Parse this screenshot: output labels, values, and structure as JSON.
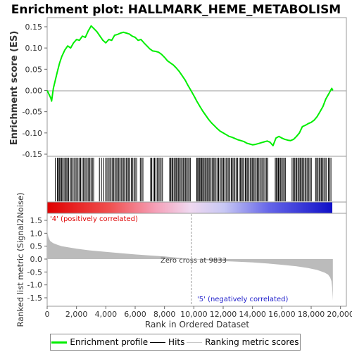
{
  "chart_data": {
    "type": "line",
    "title": "Enrichment plot: HALLMARK_HEME_METABOLISM",
    "enrichment_panel": {
      "ylabel": "Enrichment score (ES)",
      "ylim": [
        -0.15,
        0.165
      ],
      "yticks": [
        0.15,
        0.1,
        0.05,
        0.0,
        -0.05,
        -0.1,
        -0.15
      ],
      "ytick_labels": [
        "0.15",
        "0.10",
        "0.05",
        "0.00",
        "-0.05",
        "-0.10",
        "-0.15"
      ],
      "series": [
        {
          "name": "Enrichment profile",
          "x": [
            0,
            250,
            300,
            420,
            560,
            700,
            850,
            1000,
            1200,
            1400,
            1600,
            1800,
            2000,
            2200,
            2400,
            2600,
            2800,
            3000,
            3200,
            3400,
            3600,
            3800,
            4000,
            4200,
            4400,
            4600,
            4800,
            5000,
            5200,
            5400,
            5600,
            5800,
            6000,
            6200,
            6400,
            6600,
            6800,
            7000,
            7200,
            7400,
            7600,
            7800,
            8000,
            8200,
            8400,
            8600,
            8800,
            9000,
            9200,
            9400,
            9600,
            9800,
            10000,
            10200,
            10400,
            10600,
            10800,
            11000,
            11200,
            11400,
            11600,
            11800,
            12000,
            12200,
            12400,
            12600,
            12800,
            13000,
            13200,
            13400,
            13600,
            13800,
            14000,
            14200,
            14400,
            14600,
            14800,
            15000,
            15200,
            15400,
            15600,
            15800,
            16000,
            16200,
            16400,
            16600,
            16800,
            17000,
            17200,
            17400,
            17600,
            17800,
            18000,
            18200,
            18400,
            18600,
            18800,
            19000,
            19200,
            19400,
            19480
          ],
          "y": [
            0.0,
            -0.018,
            -0.025,
            0.005,
            0.025,
            0.045,
            0.065,
            0.08,
            0.095,
            0.105,
            0.1,
            0.112,
            0.12,
            0.118,
            0.128,
            0.125,
            0.14,
            0.152,
            0.145,
            0.138,
            0.128,
            0.118,
            0.112,
            0.12,
            0.118,
            0.13,
            0.132,
            0.135,
            0.137,
            0.135,
            0.133,
            0.128,
            0.125,
            0.118,
            0.12,
            0.112,
            0.105,
            0.098,
            0.093,
            0.092,
            0.09,
            0.085,
            0.078,
            0.07,
            0.065,
            0.06,
            0.053,
            0.045,
            0.035,
            0.025,
            0.012,
            0.0,
            -0.012,
            -0.025,
            -0.037,
            -0.048,
            -0.058,
            -0.068,
            -0.076,
            -0.083,
            -0.09,
            -0.096,
            -0.1,
            -0.104,
            -0.108,
            -0.11,
            -0.113,
            -0.116,
            -0.118,
            -0.12,
            -0.124,
            -0.126,
            -0.128,
            -0.127,
            -0.125,
            -0.123,
            -0.121,
            -0.119,
            -0.122,
            -0.13,
            -0.112,
            -0.108,
            -0.112,
            -0.115,
            -0.117,
            -0.118,
            -0.115,
            -0.108,
            -0.1,
            -0.085,
            -0.082,
            -0.078,
            -0.075,
            -0.07,
            -0.062,
            -0.05,
            -0.038,
            -0.02,
            -0.008,
            0.005,
            0.0
          ],
          "color": "#00ee00"
        }
      ]
    },
    "hits_panel": {
      "hit_positions": [
        560,
        700,
        760,
        830,
        900,
        980,
        1050,
        1150,
        1230,
        1300,
        1380,
        1460,
        1560,
        1640,
        1730,
        1830,
        1920,
        2010,
        2100,
        2190,
        2280,
        2370,
        2460,
        2550,
        2640,
        2730,
        2820,
        2910,
        2990,
        3080,
        3170,
        3560,
        3700,
        3850,
        3990,
        4080,
        4180,
        4270,
        4360,
        4450,
        4540,
        4620,
        4710,
        4790,
        4880,
        4960,
        5050,
        5130,
        5220,
        5300,
        5390,
        5470,
        5560,
        5640,
        5740,
        5820,
        5920,
        6000,
        6100,
        6350,
        6450,
        6530,
        7050,
        7130,
        7220,
        7320,
        7410,
        7500,
        7590,
        7680,
        7770,
        7860,
        8350,
        8420,
        8500,
        8570,
        8650,
        8730,
        8800,
        8880,
        8960,
        9040,
        9120,
        9200,
        9280,
        9360,
        9440,
        9520,
        9600,
        9680,
        9760,
        10200,
        10260,
        10330,
        10400,
        10470,
        10540,
        10610,
        10690,
        10760,
        10840,
        10910,
        11000,
        11080,
        11170,
        11250,
        11340,
        11420,
        11510,
        11600,
        11690,
        11780,
        11860,
        11950,
        12030,
        12120,
        12200,
        12290,
        12380,
        12460,
        12550,
        12630,
        12720,
        12800,
        12890,
        12980,
        13100,
        13180,
        13260,
        13340,
        13420,
        13510,
        13590,
        13670,
        13750,
        13840,
        13920,
        14000,
        14080,
        14160,
        14250,
        14330,
        14420,
        14500,
        14590,
        14680,
        14780,
        14870,
        14960,
        15050,
        15550,
        15620,
        15700,
        15770,
        15850,
        15920,
        16000,
        16080,
        16160,
        16240,
        16700,
        16780,
        16860,
        16950,
        17020,
        17100,
        17180,
        17250,
        17330,
        17410,
        17500,
        17580,
        17660,
        17750,
        17840,
        17920,
        18010,
        18300,
        18380,
        18460,
        18540,
        18620,
        18700,
        18790,
        18870,
        18960,
        19050,
        19180,
        19270,
        19350
      ]
    },
    "metric_panel": {
      "ylabel": "Ranked list metric (Signal2Noise)",
      "ylim": [
        -1.75,
        1.6
      ],
      "yticks": [
        1.5,
        1.0,
        0.5,
        0.0,
        -0.5,
        -1.0,
        -1.5
      ],
      "ytick_labels": [
        "1.5",
        "1.0",
        "0.5",
        "0.0",
        "-0.5",
        "-1.0",
        "-1.5"
      ],
      "x": [
        0,
        30,
        80,
        200,
        400,
        700,
        1000,
        1500,
        2000,
        3000,
        4000,
        5000,
        6000,
        7000,
        8000,
        9000,
        9833,
        11000,
        12000,
        13000,
        14000,
        15000,
        16000,
        17000,
        17800,
        18400,
        18900,
        19150,
        19300,
        19380,
        19430,
        19480
      ],
      "y": [
        1.45,
        1.0,
        0.85,
        0.7,
        0.62,
        0.55,
        0.5,
        0.45,
        0.4,
        0.33,
        0.28,
        0.23,
        0.18,
        0.14,
        0.1,
        0.05,
        0.0,
        -0.05,
        -0.08,
        -0.1,
        -0.13,
        -0.17,
        -0.22,
        -0.28,
        -0.35,
        -0.42,
        -0.52,
        -0.6,
        -0.72,
        -0.85,
        -1.1,
        -1.6
      ],
      "annotation_top": "'4' (positively correlated)",
      "annotation_zero": "Zero cross at 9833",
      "annotation_bottom": "'5' (negatively correlated)"
    },
    "xaxis": {
      "label": "Rank in Ordered Dataset",
      "xlim": [
        0,
        20400
      ],
      "ticks": [
        0,
        2000,
        4000,
        6000,
        8000,
        10000,
        12000,
        14000,
        16000,
        18000,
        20000
      ],
      "tick_labels": [
        "0",
        "2,000",
        "4,000",
        "6,000",
        "8,000",
        "10,000",
        "12,000",
        "14,000",
        "16,000",
        "18,000",
        "20,000"
      ],
      "n_genes": 19480,
      "zero_cross": 9833
    },
    "legend": {
      "placement": "bottom",
      "entries": [
        {
          "name": "Enrichment profile",
          "color": "#00ee00"
        },
        {
          "name": "Hits",
          "color": "#000000"
        },
        {
          "name": "Ranking metric scores",
          "color": "#c8c8c8"
        }
      ]
    },
    "colors": {
      "positive_annot": "#dd0000",
      "negative_annot": "#2222cc",
      "metric_fill": "#bbbbbb",
      "zero_line": "#999999"
    }
  }
}
